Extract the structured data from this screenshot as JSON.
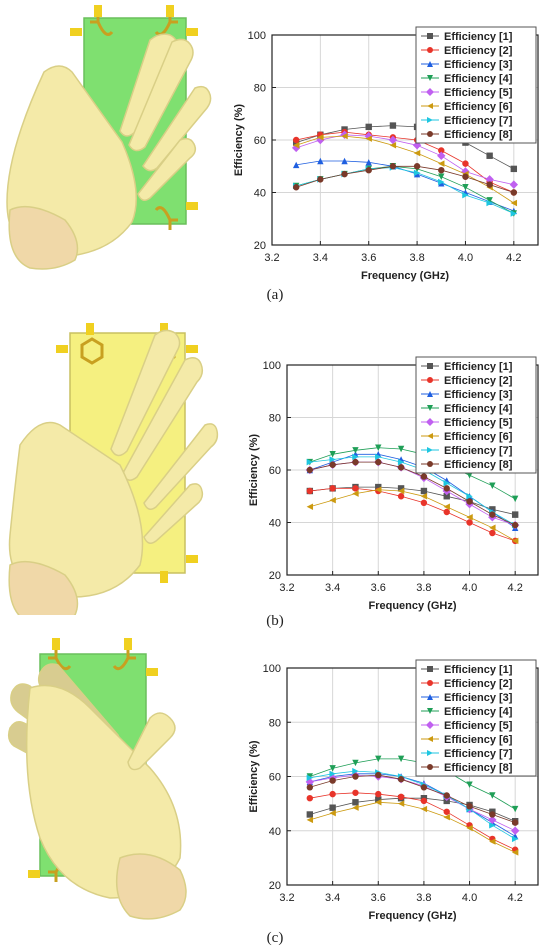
{
  "captions": [
    "(a)",
    "(b)",
    "(c)"
  ],
  "chart_data": [
    {
      "type": "line",
      "title": "",
      "xlabel": "Frequency (GHz)",
      "ylabel": "Efficiency (%)",
      "xlim": [
        3.2,
        4.3
      ],
      "ylim": [
        20,
        100
      ],
      "xticks": [
        "3.2",
        "3.4",
        "3.6",
        "3.8",
        "4.0",
        "4.2"
      ],
      "yticks": [
        "20",
        "40",
        "60",
        "80",
        "100"
      ],
      "grid": true,
      "legend": "top-right",
      "x": [
        3.3,
        3.4,
        3.5,
        3.6,
        3.7,
        3.8,
        3.9,
        4.0,
        4.1,
        4.2
      ],
      "series": [
        {
          "name": "Efficiency [1]",
          "values": [
            59,
            62,
            64,
            65,
            65.5,
            65,
            63,
            59,
            54,
            49
          ]
        },
        {
          "name": "Efficiency [2]",
          "values": [
            60,
            62,
            63,
            62,
            61,
            60,
            56,
            51,
            44,
            40
          ]
        },
        {
          "name": "Efficiency [3]",
          "values": [
            50.5,
            52,
            52,
            51.5,
            50,
            47,
            43.5,
            40,
            36.5,
            33
          ]
        },
        {
          "name": "Efficiency [4]",
          "values": [
            42.5,
            45,
            47,
            49,
            50,
            49,
            46,
            42,
            37,
            32
          ]
        },
        {
          "name": "Efficiency [5]",
          "values": [
            57,
            60,
            62,
            61.5,
            60,
            58,
            54,
            48,
            45,
            43
          ]
        },
        {
          "name": "Efficiency [6]",
          "values": [
            58,
            61,
            61.5,
            60.5,
            58,
            55,
            51,
            47,
            42,
            36
          ]
        },
        {
          "name": "Efficiency [7]",
          "values": [
            42.5,
            45,
            47,
            49,
            49.5,
            47.5,
            44,
            39,
            36,
            32
          ]
        },
        {
          "name": "Efficiency [8]",
          "values": [
            42,
            45,
            47,
            48.5,
            50,
            50,
            48.5,
            46,
            43,
            40
          ]
        }
      ]
    },
    {
      "type": "line",
      "title": "",
      "xlabel": "Frequency (GHz)",
      "ylabel": "Efficiency (%)",
      "xlim": [
        3.2,
        4.3
      ],
      "ylim": [
        20,
        100
      ],
      "xticks": [
        "3.2",
        "3.4",
        "3.6",
        "3.8",
        "4.0",
        "4.2"
      ],
      "yticks": [
        "20",
        "40",
        "60",
        "80",
        "100"
      ],
      "grid": true,
      "legend": "top-right",
      "x": [
        3.3,
        3.4,
        3.5,
        3.6,
        3.7,
        3.8,
        3.9,
        4.0,
        4.1,
        4.2
      ],
      "series": [
        {
          "name": "Efficiency [1]",
          "values": [
            52,
            53,
            53.5,
            53.5,
            53,
            52,
            50,
            48,
            45,
            43
          ]
        },
        {
          "name": "Efficiency [2]",
          "values": [
            52,
            53,
            53,
            52,
            50,
            47.5,
            44,
            40,
            36,
            33
          ]
        },
        {
          "name": "Efficiency [3]",
          "values": [
            60,
            63,
            66,
            66,
            64,
            61,
            56,
            50,
            44,
            38
          ]
        },
        {
          "name": "Efficiency [4]",
          "values": [
            63,
            66,
            67.5,
            68.5,
            68,
            66,
            62,
            58,
            54,
            49
          ]
        },
        {
          "name": "Efficiency [5]",
          "values": [
            60,
            62,
            63,
            63,
            61,
            57,
            52,
            47,
            42,
            39
          ]
        },
        {
          "name": "Efficiency [6]",
          "values": [
            46,
            48.5,
            51,
            52.5,
            52,
            50,
            46,
            42,
            38,
            33
          ]
        },
        {
          "name": "Efficiency [7]",
          "values": [
            63,
            64,
            65,
            65,
            63,
            60,
            55,
            50,
            44,
            39
          ]
        },
        {
          "name": "Efficiency [8]",
          "values": [
            60,
            62,
            63,
            63,
            61,
            57.5,
            53,
            48,
            43,
            39
          ]
        }
      ]
    },
    {
      "type": "line",
      "title": "",
      "xlabel": "Frequency (GHz)",
      "ylabel": "Efficiency (%)",
      "xlim": [
        3.2,
        4.3
      ],
      "ylim": [
        20,
        100
      ],
      "xticks": [
        "3.2",
        "3.4",
        "3.6",
        "3.8",
        "4.0",
        "4.2"
      ],
      "yticks": [
        "20",
        "40",
        "60",
        "80",
        "100"
      ],
      "grid": true,
      "legend": "top-right",
      "x": [
        3.3,
        3.4,
        3.5,
        3.6,
        3.7,
        3.8,
        3.9,
        4.0,
        4.1,
        4.2
      ],
      "series": [
        {
          "name": "Efficiency [1]",
          "values": [
            46,
            48.5,
            50.5,
            51.5,
            52,
            52,
            51,
            49.5,
            47,
            43.5
          ]
        },
        {
          "name": "Efficiency [2]",
          "values": [
            52,
            53.5,
            54,
            53.5,
            52.5,
            51,
            47,
            42,
            37,
            33
          ]
        },
        {
          "name": "Efficiency [3]",
          "values": [
            58,
            60,
            61,
            61,
            60,
            57.5,
            53,
            48,
            43,
            38
          ]
        },
        {
          "name": "Efficiency [4]",
          "values": [
            60,
            63,
            65,
            66.5,
            66.5,
            65,
            62,
            57,
            53,
            48
          ]
        },
        {
          "name": "Efficiency [5]",
          "values": [
            58,
            59.5,
            60.5,
            60,
            59,
            56.5,
            52.5,
            48,
            44,
            40
          ]
        },
        {
          "name": "Efficiency [6]",
          "values": [
            44,
            46.5,
            48.5,
            50.5,
            50,
            48,
            45,
            41,
            36,
            32
          ]
        },
        {
          "name": "Efficiency [7]",
          "values": [
            59.5,
            61,
            62,
            61.5,
            60,
            57,
            53,
            48,
            42,
            37
          ]
        },
        {
          "name": "Efficiency [8]",
          "values": [
            56,
            58.5,
            60,
            60.5,
            59,
            56,
            53,
            49,
            46,
            43
          ]
        }
      ]
    }
  ],
  "series_style": [
    {
      "color": "#555555",
      "marker": "square"
    },
    {
      "color": "#e8342a",
      "marker": "circle"
    },
    {
      "color": "#1f5fe0",
      "marker": "triangle-up"
    },
    {
      "color": "#1f9f57",
      "marker": "triangle-down"
    },
    {
      "color": "#c060f0",
      "marker": "diamond"
    },
    {
      "color": "#cc9a10",
      "marker": "triangle-left"
    },
    {
      "color": "#1ec6e0",
      "marker": "triangle-right"
    },
    {
      "color": "#7a3a2a",
      "marker": "circle"
    }
  ],
  "board_colors": [
    "#7fe070",
    "#f5f080",
    "#7fe070"
  ]
}
